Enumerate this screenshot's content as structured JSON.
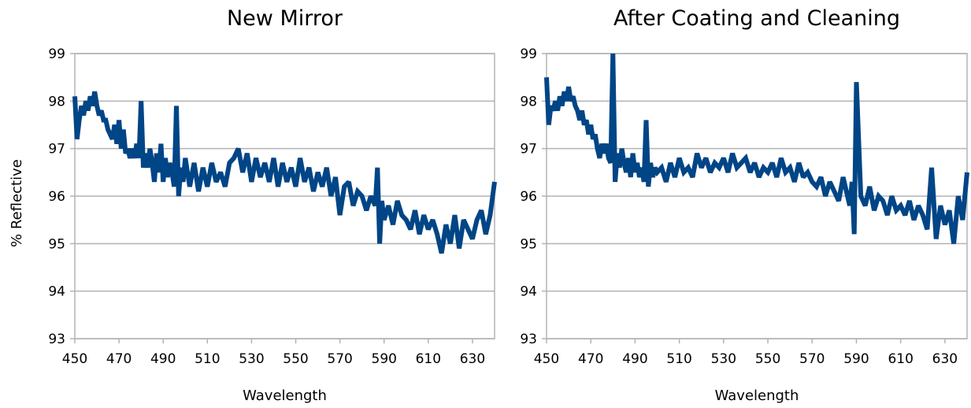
{
  "colors": {
    "series": "#004586",
    "grid": "#b3b3b3"
  },
  "chart_data": [
    {
      "type": "line",
      "title": "New Mirror",
      "xlabel": "Wavelength",
      "ylabel": "% Reflective",
      "xlim": [
        450,
        640
      ],
      "ylim": [
        93,
        99
      ],
      "x_ticks": [
        450,
        470,
        490,
        510,
        530,
        550,
        570,
        590,
        610,
        630
      ],
      "y_ticks": [
        93,
        94,
        95,
        96,
        97,
        98,
        99
      ],
      "grid": true,
      "series": [
        {
          "x": [
            450,
            451,
            452,
            453,
            454,
            455,
            456,
            457,
            458,
            459,
            460,
            461,
            462,
            463,
            464,
            465,
            466,
            467,
            468,
            469,
            470,
            471,
            472,
            473,
            474,
            475,
            476,
            477,
            478,
            479,
            480,
            481,
            482,
            483,
            484,
            485,
            486,
            487,
            488,
            489,
            490,
            491,
            492,
            493,
            494,
            495,
            496,
            497,
            498,
            499,
            500,
            502,
            504,
            506,
            508,
            510,
            512,
            514,
            516,
            518,
            520,
            522,
            524,
            526,
            528,
            530,
            532,
            534,
            536,
            538,
            540,
            542,
            544,
            546,
            548,
            550,
            552,
            554,
            556,
            558,
            560,
            562,
            564,
            566,
            568,
            570,
            572,
            574,
            576,
            578,
            580,
            582,
            584,
            586,
            587,
            588,
            589,
            590,
            592,
            594,
            596,
            598,
            600,
            602,
            604,
            606,
            608,
            610,
            612,
            614,
            616,
            618,
            620,
            622,
            624,
            626,
            628,
            630,
            632,
            634,
            636,
            638,
            640
          ],
          "y": [
            98.1,
            97.2,
            97.6,
            97.9,
            97.7,
            98.0,
            97.8,
            98.1,
            97.9,
            98.2,
            97.9,
            97.7,
            97.8,
            97.6,
            97.6,
            97.4,
            97.3,
            97.2,
            97.5,
            97.1,
            97.6,
            97.0,
            97.4,
            96.9,
            97.0,
            96.8,
            97.0,
            96.8,
            97.1,
            96.8,
            98.0,
            96.6,
            96.9,
            96.6,
            97.0,
            96.7,
            96.3,
            96.9,
            96.5,
            97.1,
            96.3,
            96.8,
            96.4,
            96.7,
            96.5,
            96.2,
            97.9,
            96.0,
            96.6,
            96.3,
            96.8,
            96.2,
            96.7,
            96.1,
            96.6,
            96.2,
            96.7,
            96.3,
            96.5,
            96.2,
            96.7,
            96.8,
            97.0,
            96.5,
            96.9,
            96.3,
            96.8,
            96.4,
            96.7,
            96.3,
            96.8,
            96.2,
            96.7,
            96.3,
            96.6,
            96.2,
            96.8,
            96.3,
            96.6,
            96.1,
            96.5,
            96.2,
            96.6,
            96.0,
            96.4,
            95.6,
            96.2,
            96.3,
            95.8,
            96.1,
            96.0,
            95.7,
            96.0,
            95.8,
            96.6,
            95.0,
            95.9,
            95.5,
            95.8,
            95.4,
            95.9,
            95.6,
            95.5,
            95.3,
            95.7,
            95.2,
            95.6,
            95.3,
            95.5,
            95.2,
            94.8,
            95.4,
            95.0,
            95.6,
            94.9,
            95.5,
            95.3,
            95.1,
            95.5,
            95.7,
            95.2,
            95.6,
            96.3
          ]
        }
      ]
    },
    {
      "type": "line",
      "title": "After Coating and Cleaning",
      "xlabel": "Wavelength",
      "ylabel": "",
      "xlim": [
        450,
        640
      ],
      "ylim": [
        93,
        99
      ],
      "x_ticks": [
        450,
        470,
        490,
        510,
        530,
        550,
        570,
        590,
        610,
        630
      ],
      "y_ticks": [
        93,
        94,
        95,
        96,
        97,
        98,
        99
      ],
      "grid": true,
      "series": [
        {
          "x": [
            450,
            451,
            452,
            453,
            454,
            455,
            456,
            457,
            458,
            459,
            460,
            461,
            462,
            463,
            464,
            465,
            466,
            467,
            468,
            469,
            470,
            471,
            472,
            473,
            474,
            475,
            476,
            477,
            478,
            479,
            480,
            481,
            482,
            483,
            484,
            485,
            486,
            487,
            488,
            489,
            490,
            491,
            492,
            493,
            494,
            495,
            496,
            497,
            498,
            499,
            500,
            502,
            504,
            506,
            508,
            510,
            512,
            514,
            516,
            518,
            520,
            522,
            524,
            526,
            528,
            530,
            532,
            534,
            536,
            538,
            540,
            542,
            544,
            546,
            548,
            550,
            552,
            554,
            556,
            558,
            560,
            562,
            564,
            566,
            568,
            570,
            572,
            574,
            576,
            578,
            580,
            582,
            584,
            586,
            587,
            588,
            589,
            590,
            592,
            594,
            596,
            598,
            600,
            602,
            604,
            606,
            608,
            610,
            612,
            614,
            616,
            618,
            620,
            622,
            624,
            626,
            628,
            630,
            632,
            634,
            636,
            638,
            640
          ],
          "y": [
            98.5,
            97.5,
            97.9,
            97.8,
            98.0,
            97.8,
            98.1,
            97.9,
            98.2,
            98.0,
            98.3,
            98.0,
            98.1,
            97.9,
            97.8,
            97.6,
            97.8,
            97.5,
            97.6,
            97.3,
            97.5,
            97.2,
            97.3,
            97.0,
            96.8,
            97.1,
            96.9,
            97.1,
            96.8,
            96.7,
            99.0,
            96.3,
            96.9,
            96.6,
            97.0,
            96.7,
            96.5,
            96.8,
            96.4,
            96.9,
            96.5,
            96.7,
            96.4,
            96.6,
            96.3,
            97.6,
            96.2,
            96.7,
            96.4,
            96.6,
            96.5,
            96.6,
            96.3,
            96.7,
            96.4,
            96.8,
            96.5,
            96.6,
            96.4,
            96.9,
            96.6,
            96.8,
            96.5,
            96.7,
            96.6,
            96.8,
            96.5,
            96.9,
            96.6,
            96.7,
            96.8,
            96.5,
            96.7,
            96.4,
            96.6,
            96.5,
            96.7,
            96.4,
            96.8,
            96.5,
            96.6,
            96.3,
            96.7,
            96.4,
            96.5,
            96.3,
            96.2,
            96.4,
            96.0,
            96.3,
            96.1,
            95.9,
            96.4,
            96.0,
            95.8,
            96.3,
            95.2,
            98.4,
            96.0,
            95.8,
            96.2,
            95.7,
            96.0,
            95.9,
            95.6,
            96.0,
            95.7,
            95.8,
            95.6,
            95.9,
            95.5,
            95.8,
            95.6,
            95.3,
            96.6,
            95.1,
            95.8,
            95.4,
            95.7,
            95.0,
            96.0,
            95.5,
            96.5
          ]
        }
      ]
    }
  ]
}
